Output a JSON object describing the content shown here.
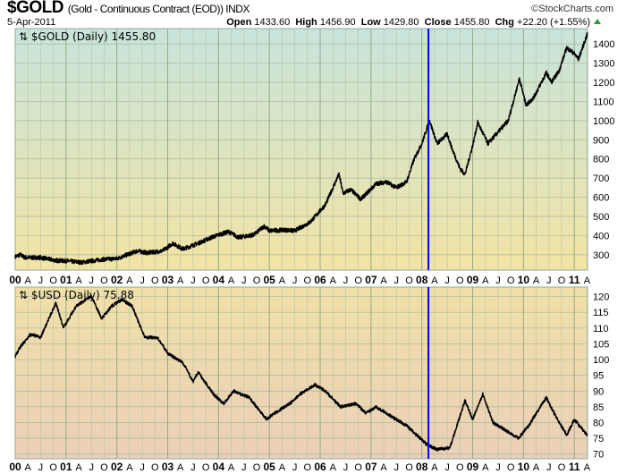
{
  "header": {
    "symbol": "$GOLD",
    "description": "(Gold - Continuous Contract (EOD)) INDX",
    "copyright": "©StockCharts.com",
    "date": "5-Apr-2011",
    "open_label": "Open",
    "open": "1433.60",
    "high_label": "High",
    "high": "1456.90",
    "low_label": "Low",
    "low": "1429.80",
    "close_label": "Close",
    "close": "1455.80",
    "chg_label": "Chg",
    "chg": "+22.20 (+1.55%)",
    "up_color": "#2a9a2a"
  },
  "chart_data": [
    {
      "type": "line",
      "title": "$GOLD (Daily) 1455.80",
      "legend_icon": "⇅",
      "ylim": [
        220,
        1480
      ],
      "yticks": [
        300,
        400,
        500,
        600,
        700,
        800,
        900,
        1000,
        1100,
        1200,
        1300,
        1400
      ],
      "x_unit": "decimal year",
      "xlim": [
        2000.0,
        2011.26
      ],
      "series": [
        {
          "name": "$GOLD",
          "color": "#000000",
          "points": [
            [
              2000.0,
              290
            ],
            [
              2000.1,
              300
            ],
            [
              2000.2,
              285
            ],
            [
              2000.5,
              285
            ],
            [
              2000.8,
              270
            ],
            [
              2001.0,
              268
            ],
            [
              2001.3,
              260
            ],
            [
              2001.7,
              275
            ],
            [
              2002.0,
              280
            ],
            [
              2002.4,
              320
            ],
            [
              2002.6,
              310
            ],
            [
              2002.9,
              320
            ],
            [
              2003.1,
              360
            ],
            [
              2003.3,
              330
            ],
            [
              2003.6,
              360
            ],
            [
              2003.9,
              395
            ],
            [
              2004.2,
              420
            ],
            [
              2004.4,
              390
            ],
            [
              2004.7,
              405
            ],
            [
              2004.9,
              450
            ],
            [
              2005.0,
              425
            ],
            [
              2005.3,
              430
            ],
            [
              2005.5,
              425
            ],
            [
              2005.8,
              470
            ],
            [
              2005.95,
              515
            ],
            [
              2006.1,
              560
            ],
            [
              2006.37,
              720
            ],
            [
              2006.45,
              620
            ],
            [
              2006.6,
              640
            ],
            [
              2006.8,
              590
            ],
            [
              2006.95,
              630
            ],
            [
              2007.1,
              670
            ],
            [
              2007.3,
              680
            ],
            [
              2007.5,
              650
            ],
            [
              2007.7,
              680
            ],
            [
              2007.85,
              800
            ],
            [
              2008.0,
              880
            ],
            [
              2008.15,
              1000
            ],
            [
              2008.3,
              880
            ],
            [
              2008.5,
              930
            ],
            [
              2008.6,
              850
            ],
            [
              2008.75,
              750
            ],
            [
              2008.85,
              720
            ],
            [
              2009.0,
              870
            ],
            [
              2009.1,
              990
            ],
            [
              2009.3,
              880
            ],
            [
              2009.5,
              940
            ],
            [
              2009.7,
              1000
            ],
            [
              2009.92,
              1220
            ],
            [
              2010.05,
              1080
            ],
            [
              2010.2,
              1120
            ],
            [
              2010.45,
              1250
            ],
            [
              2010.55,
              1200
            ],
            [
              2010.7,
              1260
            ],
            [
              2010.85,
              1380
            ],
            [
              2011.0,
              1350
            ],
            [
              2011.08,
              1320
            ],
            [
              2011.26,
              1455
            ]
          ]
        }
      ]
    },
    {
      "type": "line",
      "title": "$USD (Daily) 75.88",
      "legend_icon": "⇅",
      "ylim": [
        68.5,
        123
      ],
      "yticks": [
        70,
        75,
        80,
        85,
        90,
        95,
        100,
        105,
        110,
        115,
        120
      ],
      "x_unit": "decimal year",
      "xlim": [
        2000.0,
        2011.26
      ],
      "series": [
        {
          "name": "$USD",
          "color": "#000000",
          "points": [
            [
              2000.0,
              101
            ],
            [
              2000.1,
              104
            ],
            [
              2000.3,
              108
            ],
            [
              2000.5,
              107
            ],
            [
              2000.8,
              118
            ],
            [
              2000.95,
              110
            ],
            [
              2001.2,
              117
            ],
            [
              2001.5,
              120
            ],
            [
              2001.7,
              113
            ],
            [
              2001.9,
              117
            ],
            [
              2002.1,
              119
            ],
            [
              2002.3,
              117
            ],
            [
              2002.55,
              107
            ],
            [
              2002.8,
              107
            ],
            [
              2003.0,
              102
            ],
            [
              2003.3,
              99
            ],
            [
              2003.5,
              93
            ],
            [
              2003.6,
              96
            ],
            [
              2003.9,
              89
            ],
            [
              2004.1,
              86
            ],
            [
              2004.3,
              90
            ],
            [
              2004.6,
              88
            ],
            [
              2004.95,
              81
            ],
            [
              2005.1,
              83
            ],
            [
              2005.4,
              86
            ],
            [
              2005.6,
              89
            ],
            [
              2005.9,
              92
            ],
            [
              2006.1,
              90
            ],
            [
              2006.4,
              85
            ],
            [
              2006.7,
              86
            ],
            [
              2006.9,
              83
            ],
            [
              2007.1,
              85
            ],
            [
              2007.4,
              82
            ],
            [
              2007.7,
              79
            ],
            [
              2007.9,
              76
            ],
            [
              2008.1,
              73
            ],
            [
              2008.3,
              71.5
            ],
            [
              2008.55,
              72
            ],
            [
              2008.75,
              82
            ],
            [
              2008.85,
              87
            ],
            [
              2009.0,
              81
            ],
            [
              2009.2,
              89
            ],
            [
              2009.4,
              80
            ],
            [
              2009.7,
              77
            ],
            [
              2009.9,
              75
            ],
            [
              2010.1,
              79
            ],
            [
              2010.45,
              88
            ],
            [
              2010.6,
              83
            ],
            [
              2010.85,
              76
            ],
            [
              2011.0,
              81
            ],
            [
              2011.15,
              78
            ],
            [
              2011.26,
              75.88
            ]
          ]
        }
      ]
    }
  ],
  "x_axis_labels": [
    "00",
    "A",
    "J",
    "O",
    "01",
    "A",
    "J",
    "O",
    "02",
    "A",
    "J",
    "O",
    "03",
    "A",
    "J",
    "O",
    "04",
    "A",
    "J",
    "O",
    "05",
    "A",
    "J",
    "O",
    "06",
    "A",
    "J",
    "O",
    "07",
    "A",
    "J",
    "O",
    "08",
    "A",
    "J",
    "O",
    "09",
    "A",
    "J",
    "O",
    "10",
    "A",
    "J",
    "O",
    "11",
    "A"
  ],
  "vertical_marker": {
    "x": 2008.13,
    "color": "#0000ff"
  }
}
